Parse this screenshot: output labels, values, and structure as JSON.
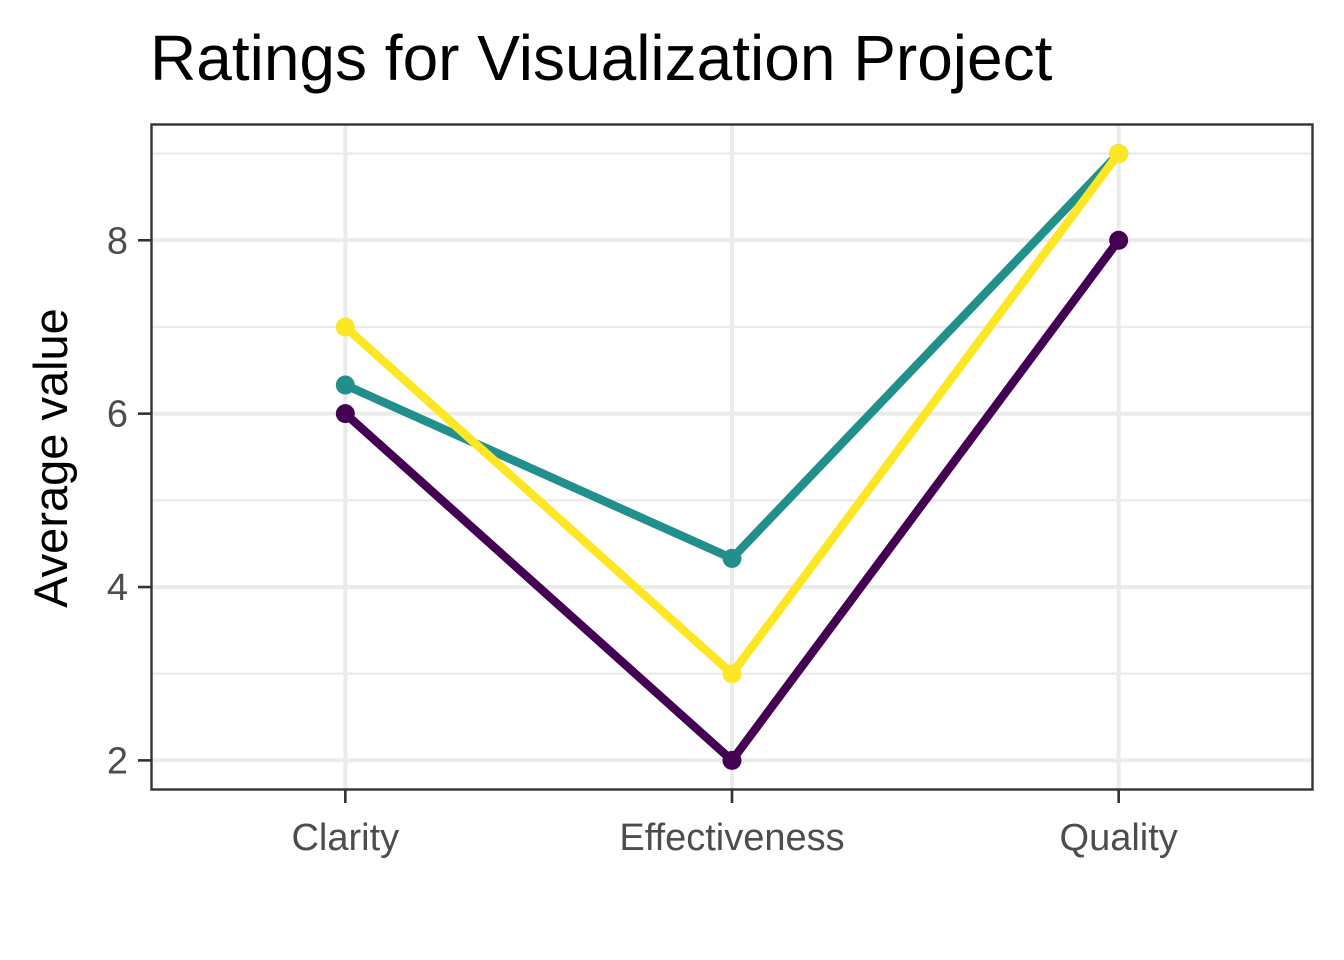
{
  "chart_data": {
    "type": "line",
    "title": "Ratings for Visualization Project",
    "xlabel": "",
    "ylabel": "Average value",
    "categories": [
      "Clarity",
      "Effectiveness",
      "Quality"
    ],
    "ylim": [
      1.67,
      9.33
    ],
    "yticks": [
      2,
      4,
      6,
      8
    ],
    "grid": true,
    "legend": "none",
    "series": [
      {
        "color": "#440154",
        "values": [
          6.0,
          2.0,
          8.0
        ]
      },
      {
        "color": "#21908C",
        "values": [
          6.33,
          4.33,
          9.0
        ]
      },
      {
        "color": "#FDE725",
        "values": [
          7.0,
          3.0,
          9.0
        ]
      }
    ]
  }
}
